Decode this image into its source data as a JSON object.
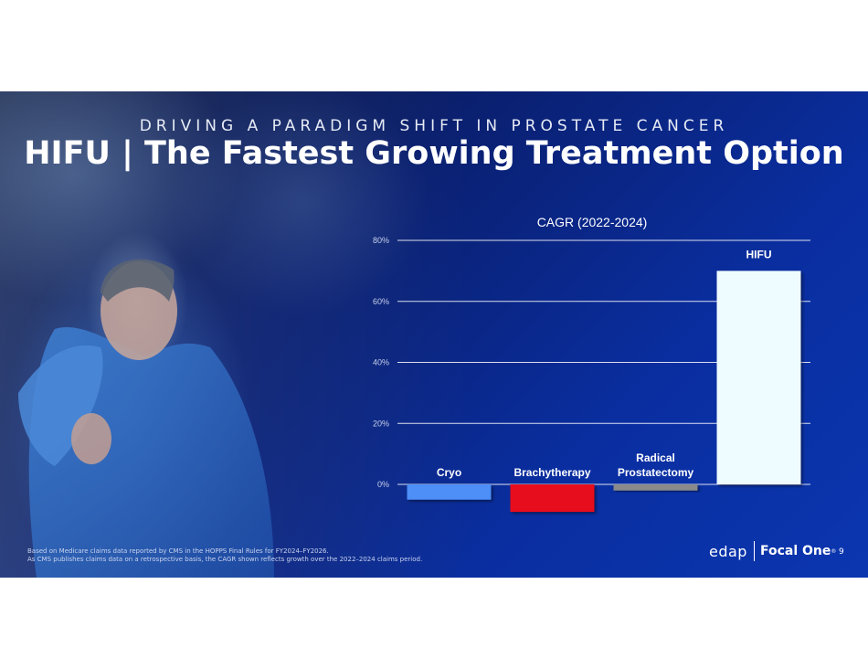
{
  "slide": {
    "subtitle": "DRIVING A PARADIGM SHIFT IN PROSTATE CANCER",
    "title": "HIFU | The Fastest Growing Treatment Option",
    "footnote_lines": [
      "Based on Medicare claims data reported by CMS in the HOPPS Final Rules for FY2024–FY2026.",
      "As CMS publishes claims data on a retrospective basis, the CAGR shown reflects growth over the 2022–2024 claims period."
    ],
    "logo": {
      "left": "edap",
      "right": "Focal One",
      "mark": "®"
    },
    "page_number": "9"
  },
  "chart_data": {
    "type": "bar",
    "title": "CAGR (2022-2024)",
    "categories": [
      "Cryo",
      "Brachytherapy",
      "Radical Prostatectomy",
      "HIFU"
    ],
    "category_lines": [
      [
        "Cryo"
      ],
      [
        "Brachytherapy"
      ],
      [
        "Radical",
        "Prostatectomy"
      ],
      [
        "HIFU"
      ]
    ],
    "values": [
      -5,
      -9,
      -2,
      70
    ],
    "unit": "%",
    "colors": [
      "#4d8ef7",
      "#e8101c",
      "#8a8a8a",
      "#eefcff"
    ],
    "ylim": [
      -10,
      80
    ],
    "yticks": [
      0,
      20,
      40,
      60,
      80
    ],
    "ytick_labels": [
      "0%",
      "20%",
      "40%",
      "60%",
      "80%"
    ],
    "grid": true,
    "xlabel": "",
    "ylabel": ""
  }
}
